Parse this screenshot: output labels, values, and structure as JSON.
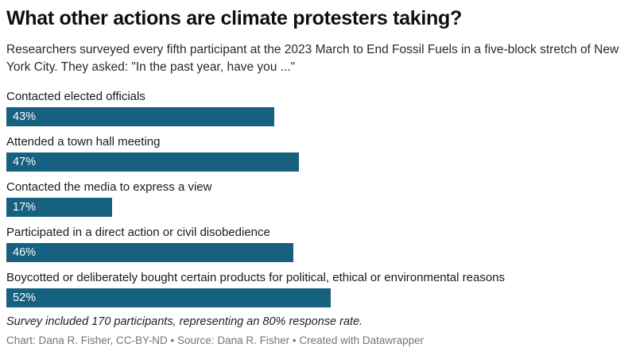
{
  "header": {
    "title": "What other actions are climate protesters taking?",
    "description": "Researchers surveyed every fifth participant at the 2023 March to End Fossil Fuels in a five-block stretch of New York City. They asked: \"In the past year, have you ...\""
  },
  "chart_data": {
    "type": "bar",
    "orientation": "horizontal",
    "title": "What other actions are climate protesters taking?",
    "categories": [
      "Contacted elected officials",
      "Attended a town hall meeting",
      "Contacted the media to express a view",
      "Participated in a direct action or civil disobedience",
      "Boycotted or deliberately bought certain products for political, ethical or environmental reasons"
    ],
    "values": [
      43,
      47,
      17,
      46,
      52
    ],
    "value_labels": [
      "43%",
      "47%",
      "17%",
      "46%",
      "52%"
    ],
    "unit": "%",
    "xlim": [
      0,
      100
    ],
    "bar_color": "#15617f",
    "value_label_color": "#ffffff",
    "grid": false,
    "legend": "none"
  },
  "footer": {
    "notes": "Survey included 170 participants, representing an 80% response rate.",
    "credit_prefix": "Chart: Dana R. Fisher, CC-BY-ND • Source: Dana R. Fisher • ",
    "datawrapper_credit": "Created with Datawrapper"
  }
}
